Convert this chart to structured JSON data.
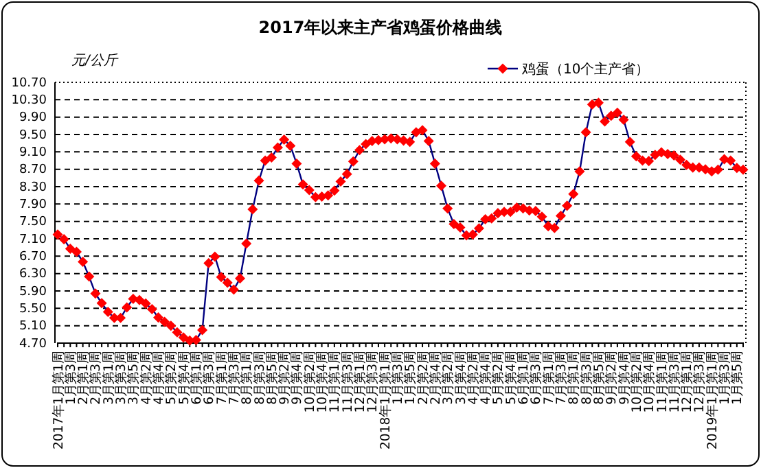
{
  "chart_data": {
    "type": "line",
    "title": "2017年以来主产省鸡蛋价格曲线",
    "ylabel": "元/公斤",
    "categories": [
      "2017年1月第1周",
      null,
      "1月第3周",
      null,
      "2月第1周",
      null,
      "2月第3周",
      null,
      "3月第1周",
      null,
      "3月第3周",
      null,
      "3月第5周",
      null,
      "4月第2周",
      null,
      "4月第4周",
      null,
      "5月第2周",
      null,
      "5月第4周",
      null,
      "6月第1周",
      null,
      "6月第3周",
      null,
      "7月第1周",
      null,
      "7月第3周",
      null,
      "8月第1周",
      null,
      "8月第3周",
      null,
      "8月第5周",
      null,
      "9月第2周",
      null,
      "9月第4周",
      null,
      "10月第2周",
      null,
      "10月第4周",
      null,
      "11月第1周",
      null,
      "11月第3周",
      null,
      "12月第1周",
      null,
      "12月第3周",
      null,
      "2018年1月第1周",
      null,
      "1月第3周",
      null,
      "1月第5周",
      null,
      "2月第2周",
      null,
      "2月第4周",
      null,
      "3月第2周",
      null,
      "3月第4周",
      null,
      "4月第2周",
      null,
      "4月第4周",
      null,
      "5月第2周",
      null,
      "5月第4周",
      null,
      "6月第1周",
      null,
      "6月第3周",
      null,
      "7月第1周",
      null,
      "7月第3周",
      null,
      "8月第1周",
      null,
      "8月第3周",
      null,
      "8月第5周",
      null,
      "9月第2周",
      null,
      "9月第4周",
      null,
      "10月第2周",
      null,
      "10月第4周",
      null,
      "11月第1周",
      null,
      "11月第3周",
      null,
      "12月第1周",
      null,
      "12月第3周",
      null,
      "2019年1月第1周",
      null,
      "1月第3周",
      null,
      "1月第5周",
      null
    ],
    "series": [
      {
        "name": "鸡蛋（10个主产省）",
        "color": "#ff0000",
        "values": [
          7.2,
          7.09,
          6.87,
          6.8,
          6.57,
          6.23,
          5.84,
          5.62,
          5.42,
          5.28,
          5.28,
          5.52,
          5.72,
          5.69,
          5.61,
          5.48,
          5.29,
          5.19,
          5.1,
          4.95,
          4.83,
          4.76,
          4.77,
          5.0,
          6.54,
          6.69,
          6.22,
          6.09,
          5.93,
          6.19,
          6.99,
          7.78,
          8.44,
          8.9,
          8.97,
          9.2,
          9.38,
          9.24,
          8.83,
          8.35,
          8.22,
          8.06,
          8.07,
          8.1,
          8.21,
          8.42,
          8.59,
          8.88,
          9.14,
          9.28,
          9.35,
          9.37,
          9.39,
          9.41,
          9.39,
          9.36,
          9.33,
          9.55,
          9.6,
          9.35,
          8.83,
          8.32,
          7.8,
          7.44,
          7.36,
          7.18,
          7.2,
          7.34,
          7.55,
          7.57,
          7.69,
          7.72,
          7.72,
          7.82,
          7.8,
          7.75,
          7.74,
          7.61,
          7.39,
          7.35,
          7.63,
          7.86,
          8.13,
          8.65,
          9.55,
          10.19,
          10.23,
          9.8,
          9.93,
          10.0,
          9.84,
          9.33,
          9.0,
          8.9,
          8.89,
          9.03,
          9.09,
          9.05,
          9.02,
          8.92,
          8.8,
          8.74,
          8.74,
          8.7,
          8.65,
          8.69,
          8.93,
          8.9,
          8.73,
          8.69
        ]
      }
    ],
    "ylim": [
      4.7,
      10.7
    ],
    "yticks": [
      {
        "value": 4.7,
        "label": "4.70"
      },
      {
        "value": 5.1,
        "label": "5.10"
      },
      {
        "value": 5.5,
        "label": "5.50"
      },
      {
        "value": 5.9,
        "label": "5.90"
      },
      {
        "value": 6.3,
        "label": "6.30"
      },
      {
        "value": 6.7,
        "label": "6.70"
      },
      {
        "value": 7.1,
        "label": "7.10"
      },
      {
        "value": 7.5,
        "label": "7.50"
      },
      {
        "value": 7.9,
        "label": "7.90"
      },
      {
        "value": 8.3,
        "label": "8.30"
      },
      {
        "value": 8.7,
        "label": "8.70"
      },
      {
        "value": 9.1,
        "label": "9.10"
      },
      {
        "value": 9.5,
        "label": "9.50"
      },
      {
        "value": 9.9,
        "label": "9.90"
      },
      {
        "value": 10.3,
        "label": "10.30"
      },
      {
        "value": 10.7,
        "label": "10.70"
      }
    ],
    "grid": "y",
    "legend": "top right",
    "marker": "diamond",
    "line_style": "solid"
  }
}
